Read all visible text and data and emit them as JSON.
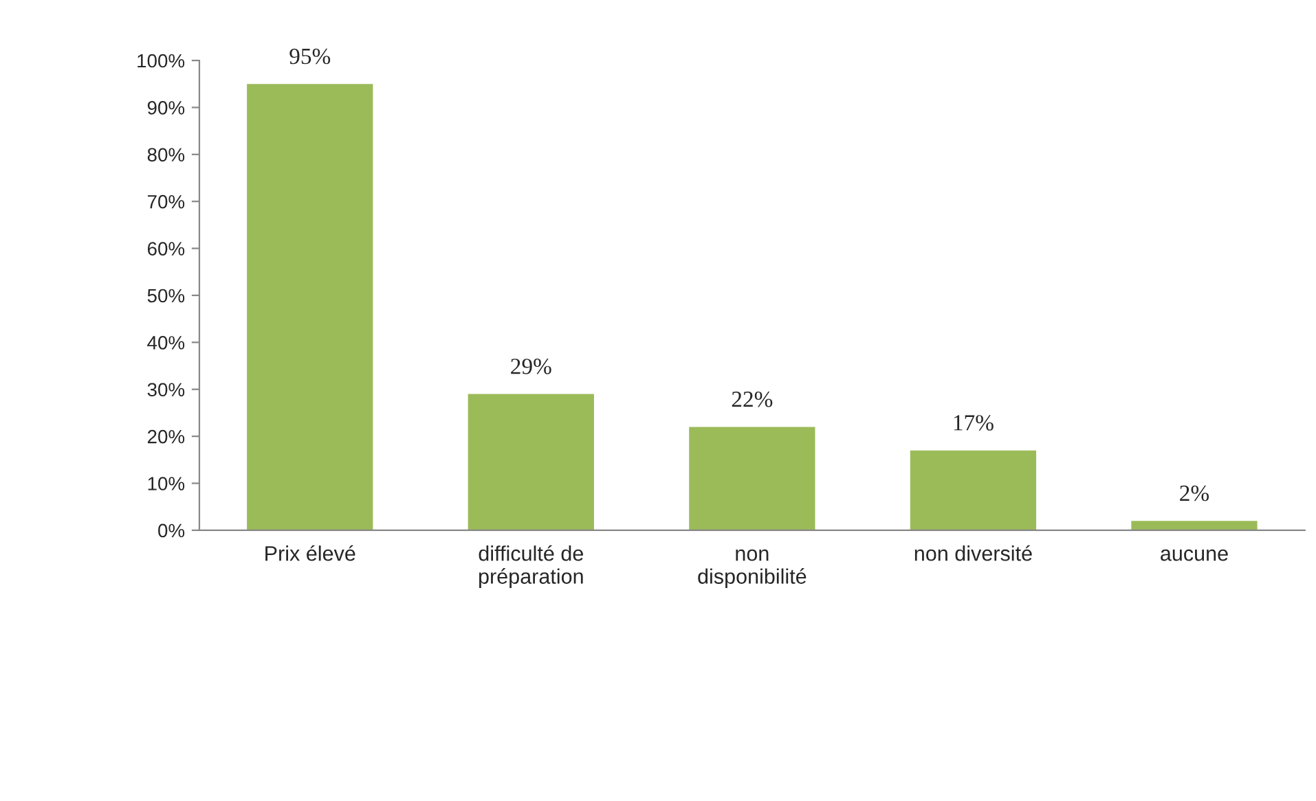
{
  "chart_data": {
    "type": "bar",
    "categories": [
      "Prix élevé",
      "difficulté de\npréparation",
      "non\ndisponibilité",
      "non diversité",
      "aucune"
    ],
    "values": [
      95,
      29,
      22,
      17,
      2
    ],
    "value_labels": [
      "95%",
      "29%",
      "22%",
      "17%",
      "2%"
    ],
    "color": "#9bbb59",
    "ylim": [
      0,
      100
    ],
    "yticks": [
      {
        "value": 0,
        "label": "0%"
      },
      {
        "value": 10,
        "label": "10%"
      },
      {
        "value": 20,
        "label": "20%"
      },
      {
        "value": 30,
        "label": "30%"
      },
      {
        "value": 40,
        "label": "40%"
      },
      {
        "value": 50,
        "label": "50%"
      },
      {
        "value": 60,
        "label": "60%"
      },
      {
        "value": 70,
        "label": "70%"
      },
      {
        "value": 80,
        "label": "80%"
      },
      {
        "value": 90,
        "label": "90%"
      },
      {
        "value": 100,
        "label": "100%"
      }
    ],
    "grid": false,
    "legend": false
  }
}
